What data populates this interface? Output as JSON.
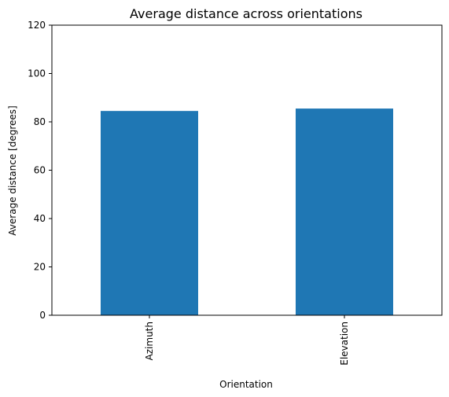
{
  "chart_data": {
    "type": "bar",
    "title": "Average distance across orientations",
    "xlabel": "Orientation",
    "ylabel": "Average distance [degrees]",
    "categories": [
      "Azimuth",
      "Elevation"
    ],
    "values": [
      84.5,
      85.5
    ],
    "ylim": [
      0,
      120
    ],
    "yticks": [
      0,
      20,
      40,
      60,
      80,
      100,
      120
    ],
    "grid": false,
    "legend": "none",
    "colors": {
      "bar": "#1f77b4"
    }
  }
}
